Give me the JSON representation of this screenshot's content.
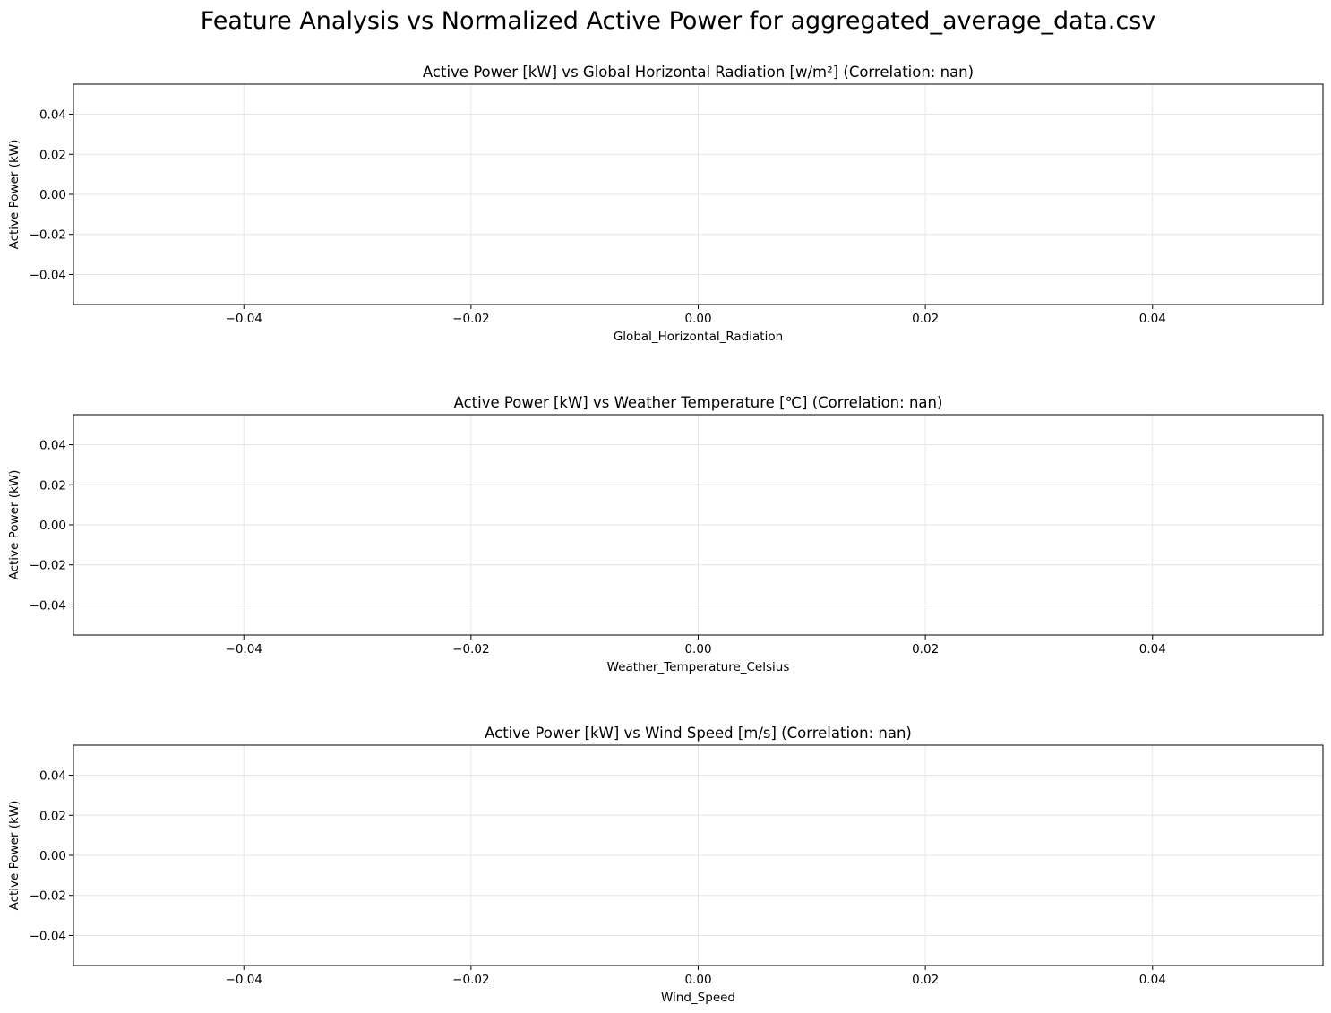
{
  "figure": {
    "suptitle": "Feature Analysis vs Normalized Active Power for aggregated_average_data.csv"
  },
  "chart_data": [
    {
      "type": "scatter",
      "title": "Active Power [kW] vs Global Horizontal Radiation [w/m²] (Correlation: nan)",
      "xlabel": "Global_Horizontal_Radiation",
      "ylabel": "Active Power (kW)",
      "xlim": [
        -0.055,
        0.055
      ],
      "ylim": [
        -0.055,
        0.055
      ],
      "xticks": [
        -0.04,
        -0.02,
        0.0,
        0.02,
        0.04
      ],
      "yticks": [
        -0.04,
        -0.02,
        0.0,
        0.02,
        0.04
      ],
      "xtick_labels": [
        "−0.04",
        "−0.02",
        "0.00",
        "0.02",
        "0.04"
      ],
      "ytick_labels": [
        "−0.04",
        "−0.02",
        "0.00",
        "0.02",
        "0.04"
      ],
      "grid": true,
      "points": []
    },
    {
      "type": "scatter",
      "title": "Active Power [kW] vs Weather Temperature [℃] (Correlation: nan)",
      "xlabel": "Weather_Temperature_Celsius",
      "ylabel": "Active Power (kW)",
      "xlim": [
        -0.055,
        0.055
      ],
      "ylim": [
        -0.055,
        0.055
      ],
      "xticks": [
        -0.04,
        -0.02,
        0.0,
        0.02,
        0.04
      ],
      "yticks": [
        -0.04,
        -0.02,
        0.0,
        0.02,
        0.04
      ],
      "xtick_labels": [
        "−0.04",
        "−0.02",
        "0.00",
        "0.02",
        "0.04"
      ],
      "ytick_labels": [
        "−0.04",
        "−0.02",
        "0.00",
        "0.02",
        "0.04"
      ],
      "grid": true,
      "points": []
    },
    {
      "type": "scatter",
      "title": "Active Power [kW] vs Wind Speed [m/s] (Correlation: nan)",
      "xlabel": "Wind_Speed",
      "ylabel": "Active Power (kW)",
      "xlim": [
        -0.055,
        0.055
      ],
      "ylim": [
        -0.055,
        0.055
      ],
      "xticks": [
        -0.04,
        -0.02,
        0.0,
        0.02,
        0.04
      ],
      "yticks": [
        -0.04,
        -0.02,
        0.0,
        0.02,
        0.04
      ],
      "xtick_labels": [
        "−0.04",
        "−0.02",
        "0.00",
        "0.02",
        "0.04"
      ],
      "ytick_labels": [
        "−0.04",
        "−0.02",
        "0.00",
        "0.02",
        "0.04"
      ],
      "grid": true,
      "points": []
    }
  ],
  "colors": {
    "axis": "#000000",
    "grid": "#e6e6e6",
    "background": "#ffffff"
  }
}
